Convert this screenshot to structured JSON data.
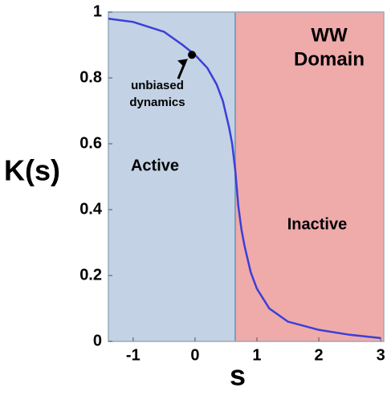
{
  "chart_data": {
    "type": "line",
    "title": [
      "WW",
      "Domain"
    ],
    "x_label": "s",
    "y_label": "K(s)",
    "x": [
      -1.4,
      -1,
      -0.5,
      -0.2,
      0,
      0.2,
      0.35,
      0.45,
      0.55,
      0.6,
      0.65,
      0.7,
      0.75,
      0.8,
      0.9,
      1.0,
      1.2,
      1.5,
      2,
      2.5,
      3
    ],
    "series": [
      {
        "color": "#3a3fd8",
        "values": [
          0.98,
          0.97,
          0.94,
          0.9,
          0.87,
          0.83,
          0.78,
          0.73,
          0.65,
          0.6,
          0.52,
          0.41,
          0.34,
          0.29,
          0.21,
          0.16,
          0.1,
          0.06,
          0.035,
          0.02,
          0.01
        ]
      }
    ],
    "regions": [
      {
        "label": "Active",
        "from": -1.4,
        "to": 0.65,
        "color": "#c3d2e4"
      },
      {
        "label": "Inactive",
        "from": 0.65,
        "to": 3.05,
        "color": "#efaaaa"
      }
    ],
    "annotation": {
      "text": [
        "unbiased",
        "dynamics"
      ],
      "x": -0.05,
      "y": 0.87
    },
    "xlim": [
      -1.4,
      3.05
    ],
    "ylim": [
      0,
      1
    ],
    "xticks": [
      -1,
      0,
      1,
      2,
      3
    ],
    "yticks": [
      0,
      0.2,
      0.4,
      0.6,
      0.8,
      1
    ]
  }
}
